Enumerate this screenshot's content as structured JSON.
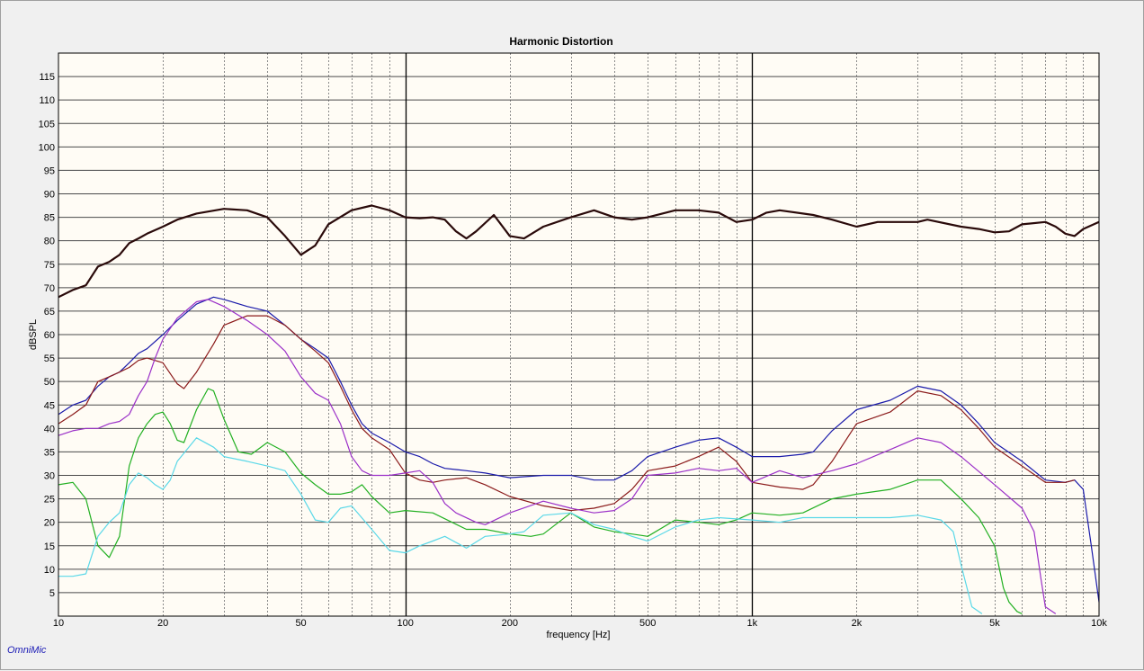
{
  "brand": "OmniMic",
  "chart_data": {
    "type": "line",
    "title": "Harmonic Distortion",
    "xlabel": "frequency [Hz]",
    "ylabel": "dBSPL",
    "xscale": "log",
    "xlim": [
      10,
      10000
    ],
    "ylim": [
      0,
      120
    ],
    "grid": true,
    "legend": "none",
    "background": "#fffcf5",
    "x_ticks": [
      {
        "v": 10,
        "label": "10"
      },
      {
        "v": 20,
        "label": "20"
      },
      {
        "v": 50,
        "label": "50"
      },
      {
        "v": 100,
        "label": "100"
      },
      {
        "v": 200,
        "label": "200"
      },
      {
        "v": 500,
        "label": "500"
      },
      {
        "v": 1000,
        "label": "1k"
      },
      {
        "v": 2000,
        "label": "2k"
      },
      {
        "v": 5000,
        "label": "5k"
      },
      {
        "v": 10000,
        "label": "10k"
      }
    ],
    "y_ticks": [
      5,
      10,
      15,
      20,
      25,
      30,
      35,
      40,
      45,
      50,
      55,
      60,
      65,
      70,
      75,
      80,
      85,
      90,
      95,
      100,
      105,
      110,
      115
    ],
    "series": [
      {
        "color": "#2a0a0a",
        "width": 2.2,
        "x": [
          10,
          11,
          12,
          13,
          14,
          15,
          16,
          17,
          18,
          20,
          22,
          25,
          30,
          35,
          40,
          45,
          50,
          55,
          60,
          70,
          80,
          90,
          100,
          110,
          120,
          130,
          140,
          150,
          160,
          180,
          200,
          220,
          250,
          300,
          350,
          400,
          450,
          500,
          600,
          700,
          800,
          900,
          1000,
          1100,
          1200,
          1500,
          1700,
          2000,
          2300,
          2500,
          3000,
          3200,
          4000,
          4500,
          5000,
          5500,
          6000,
          7000,
          7500,
          8000,
          8500,
          9000,
          10000
        ],
        "y": [
          68,
          69.5,
          70.5,
          74.5,
          75.5,
          77,
          79.5,
          80.5,
          81.5,
          83,
          84.5,
          85.8,
          86.8,
          86.5,
          85,
          81,
          77,
          79,
          83.5,
          86.5,
          87.5,
          86.5,
          85,
          84.8,
          85,
          84.5,
          82,
          80.5,
          82,
          85.5,
          81,
          80.5,
          83,
          85,
          86.5,
          85,
          84.5,
          85,
          86.5,
          86.5,
          86,
          84,
          84.5,
          86,
          86.5,
          85.5,
          84.5,
          83,
          84,
          84,
          84,
          84.5,
          83,
          82.5,
          81.8,
          82,
          83.5,
          84,
          83,
          81.5,
          81,
          82.5,
          84
        ]
      },
      {
        "color": "#1a1aaa",
        "width": 1.2,
        "x": [
          10,
          11,
          12,
          13,
          14,
          15,
          16,
          17,
          18,
          20,
          22,
          25,
          28,
          30,
          35,
          40,
          45,
          50,
          55,
          60,
          65,
          70,
          75,
          80,
          90,
          100,
          110,
          120,
          130,
          150,
          170,
          200,
          250,
          300,
          350,
          400,
          450,
          500,
          600,
          700,
          800,
          900,
          1000,
          1100,
          1200,
          1400,
          1500,
          1700,
          2000,
          2500,
          3000,
          3500,
          4000,
          4500,
          5000,
          6000,
          7000,
          8000,
          8500,
          9000,
          9500,
          10000
        ],
        "y": [
          43,
          45,
          46,
          49,
          51,
          52,
          54,
          56,
          57,
          60,
          63,
          66.5,
          68,
          67.5,
          66,
          65,
          62,
          59,
          57,
          55,
          50,
          45,
          41,
          39,
          37,
          35,
          34,
          32.5,
          31.5,
          31,
          30.5,
          29.5,
          30,
          30,
          29,
          29,
          31,
          34,
          36,
          37.5,
          38,
          36,
          34,
          34,
          34,
          34.5,
          35,
          39.5,
          44,
          46,
          49,
          48,
          45,
          41,
          37,
          33,
          29,
          28.5,
          29,
          27,
          15,
          3
        ]
      },
      {
        "color": "#8b1a1a",
        "width": 1.2,
        "x": [
          10,
          11,
          12,
          13,
          14,
          15,
          16,
          17,
          18,
          20,
          22,
          23,
          25,
          28,
          30,
          35,
          40,
          45,
          50,
          55,
          60,
          65,
          70,
          75,
          80,
          90,
          100,
          110,
          120,
          130,
          150,
          170,
          200,
          250,
          300,
          350,
          400,
          450,
          500,
          600,
          700,
          800,
          900,
          1000,
          1200,
          1400,
          1500,
          1700,
          2000,
          2500,
          3000,
          3500,
          4000,
          4500,
          5000,
          6000,
          7000,
          8000,
          8500
        ],
        "y": [
          41,
          43,
          45,
          50,
          51,
          52,
          53,
          54.5,
          55,
          54,
          49.5,
          48.5,
          52,
          58,
          62,
          64,
          64,
          62,
          59,
          56.5,
          54,
          49,
          44,
          40,
          38,
          35.5,
          30.5,
          29,
          28.5,
          29,
          29.5,
          28,
          25.5,
          23.5,
          22.5,
          23,
          24,
          27,
          31,
          32,
          34,
          36,
          33,
          28.5,
          27.5,
          27,
          28,
          33,
          41,
          43.5,
          48,
          47,
          44,
          40,
          36,
          32,
          28.5,
          28.5,
          29
        ]
      },
      {
        "color": "#9b30c8",
        "width": 1.2,
        "x": [
          10,
          11,
          12,
          13,
          14,
          15,
          16,
          17,
          18,
          19,
          20,
          22,
          25,
          27,
          30,
          35,
          40,
          45,
          50,
          55,
          60,
          65,
          70,
          75,
          80,
          90,
          100,
          110,
          120,
          130,
          140,
          160,
          170,
          200,
          250,
          300,
          350,
          400,
          450,
          500,
          600,
          700,
          800,
          900,
          1000,
          1200,
          1400,
          1700,
          2000,
          2500,
          3000,
          3500,
          4000,
          5000,
          6000,
          6500,
          6800,
          7000,
          7500
        ],
        "y": [
          38.5,
          39.5,
          40,
          40,
          41,
          41.5,
          43,
          47,
          50,
          55,
          59,
          63.5,
          67,
          67.5,
          66,
          63,
          60,
          56.5,
          51,
          47.5,
          46,
          41,
          34,
          31,
          30,
          30,
          30.5,
          31,
          28.5,
          24,
          22,
          20,
          19.5,
          22,
          24.5,
          23,
          22,
          22.5,
          25,
          30,
          30.5,
          31.5,
          31,
          31.5,
          28.5,
          31,
          29.5,
          31,
          32.5,
          35.5,
          38,
          37,
          34,
          28,
          23,
          18,
          8,
          2,
          0.5
        ]
      },
      {
        "color": "#22b022",
        "width": 1.2,
        "x": [
          10,
          11,
          12,
          13,
          14,
          15,
          16,
          17,
          18,
          19,
          20,
          21,
          22,
          23,
          25,
          27,
          28,
          30,
          33,
          36,
          40,
          45,
          50,
          55,
          60,
          65,
          70,
          75,
          80,
          90,
          100,
          120,
          150,
          170,
          200,
          230,
          250,
          300,
          350,
          400,
          450,
          500,
          600,
          700,
          800,
          900,
          1000,
          1200,
          1400,
          1700,
          2000,
          2500,
          3000,
          3500,
          4000,
          4500,
          5000,
          5300,
          5500,
          5800,
          6000
        ],
        "y": [
          28,
          28.5,
          25,
          15,
          12.5,
          17,
          32,
          38,
          41,
          43,
          43.5,
          41,
          37.5,
          37,
          44,
          48.5,
          48,
          42,
          35,
          34.5,
          37,
          35,
          30.5,
          28,
          26,
          26,
          26.5,
          28,
          25.5,
          22,
          22.5,
          22,
          18.5,
          18.5,
          17.5,
          17,
          17.5,
          22,
          19,
          18,
          17.5,
          17,
          20.5,
          20,
          19.5,
          20.5,
          22,
          21.5,
          22,
          25,
          26,
          27,
          29,
          29,
          25,
          21,
          15,
          6,
          3,
          1,
          0.5
        ]
      },
      {
        "color": "#5ad8e8",
        "width": 1.2,
        "x": [
          10,
          11,
          12,
          13,
          14,
          15,
          16,
          17,
          18,
          19,
          20,
          21,
          22,
          25,
          28,
          30,
          35,
          40,
          45,
          50,
          55,
          60,
          65,
          70,
          80,
          90,
          100,
          110,
          120,
          130,
          150,
          170,
          200,
          220,
          250,
          300,
          350,
          400,
          450,
          500,
          600,
          700,
          800,
          1000,
          1200,
          1400,
          1700,
          2000,
          2500,
          3000,
          3500,
          3800,
          4000,
          4300,
          4600
        ],
        "y": [
          8.5,
          8.5,
          9,
          17,
          20,
          22,
          28,
          30.5,
          29.5,
          28,
          27,
          29,
          33,
          38,
          36,
          34,
          33,
          32,
          31,
          26,
          20.5,
          20,
          23,
          23.5,
          18.5,
          14,
          13.5,
          15,
          16,
          17,
          14.5,
          17,
          17.5,
          18,
          21.5,
          22,
          19.5,
          18.5,
          17,
          16,
          19,
          20.5,
          21,
          20.5,
          20,
          21,
          21,
          21,
          21,
          21.5,
          20.5,
          18,
          11,
          2,
          0.5
        ]
      }
    ]
  }
}
